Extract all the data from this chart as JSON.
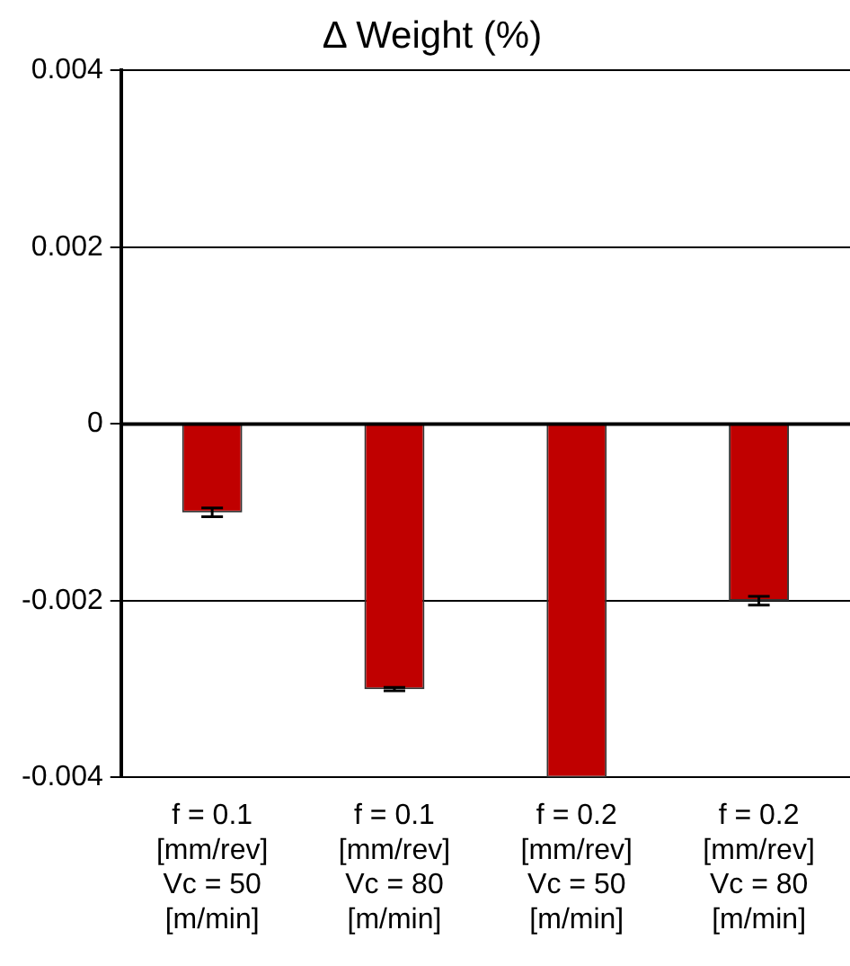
{
  "chart_data": {
    "type": "bar",
    "title": "Δ Weight (%)",
    "categories": [
      "f = 0.1\n[mm/rev]\nVc = 50\n[m/min]",
      "f = 0.1\n[mm/rev]\nVc = 80\n[m/min]",
      "f = 0.2\n[mm/rev]\nVc = 50\n[m/min]",
      "f = 0.2\n[mm/rev]\nVc = 80\n[m/min]"
    ],
    "values": [
      -0.001,
      -0.003,
      -0.004,
      -0.002
    ],
    "errors": [
      5e-05,
      2e-05,
      null,
      5e-05
    ],
    "color": "#c00000",
    "ylim": [
      -0.004,
      0.004
    ],
    "yticks": [
      -0.004,
      -0.002,
      0,
      0.002,
      0.004
    ],
    "grid": "y"
  }
}
